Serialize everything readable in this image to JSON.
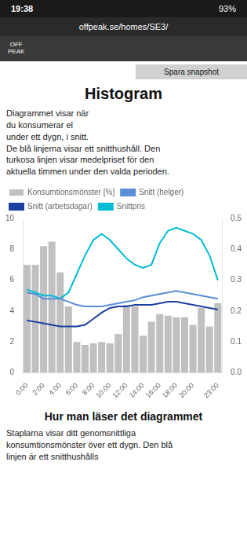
{
  "chart_data": {
    "type": "bar",
    "title": "Histogram",
    "subtitle": "Diagrammet visar när\ndu konsumerar el\nunder ett dygn, i snitt.\nDe blå linjerna visar ett snitthushåll. Den\nturkosa linjen visar medelpriset för den\naktuella timmen under den valda perioden.",
    "annotations": [
      "19:38",
      "93%",
      "offpeak.se/homes/SE3/",
      "OFF\nPEAK",
      "Spara snapshot",
      "Hur man läser det diagrammet",
      "Staplarna visar ditt genomsnittliga\nkonsumtionsmönster över ett dygn. Den blå\nlinjen är ett snitthushålls"
    ],
    "categories": [
      "0:00",
      null,
      "2:00",
      null,
      "4:00",
      null,
      "6:00",
      null,
      "8:00",
      null,
      "10:00",
      null,
      "12:00",
      null,
      "14:00",
      null,
      "16:00",
      null,
      "18:00",
      null,
      "20:00",
      null,
      null,
      "23:00"
    ],
    "series": [
      {
        "name": "Konsumtionsmönster [%]",
        "type": "bar",
        "color": "#c0c0c0",
        "values": [
          7.0,
          7.0,
          8.2,
          8.5,
          6.5,
          4.3,
          2.0,
          1.8,
          1.9,
          2.0,
          1.9,
          2.5,
          4.4,
          4.3,
          2.4,
          3.3,
          3.8,
          3.7,
          3.6,
          3.6,
          3.1,
          4.2,
          3.0,
          4.5
        ]
      },
      {
        "name": "Snitt (helger)",
        "type": "line",
        "color": "#5b8dd9",
        "values": [
          5.2,
          5.1,
          4.8,
          4.8,
          4.8,
          4.6,
          4.4,
          4.3,
          4.3,
          4.3,
          4.4,
          4.5,
          4.6,
          4.7,
          4.9,
          5.0,
          5.1,
          5.2,
          5.3,
          5.2,
          5.1,
          5.0,
          4.9,
          4.8
        ]
      },
      {
        "name": "Snitt (arbetsdagar)",
        "type": "line",
        "color": "#1a3fa0",
        "values": [
          3.4,
          3.3,
          3.2,
          3.1,
          3.0,
          3.0,
          3.0,
          3.1,
          3.5,
          3.9,
          4.2,
          4.3,
          4.3,
          4.4,
          4.4,
          4.4,
          4.5,
          4.6,
          4.6,
          4.5,
          4.4,
          4.3,
          4.2,
          4.1
        ]
      },
      {
        "name": "Snittpris",
        "type": "line",
        "color": "#00bcd4",
        "axis": "y2",
        "values": [
          0.27,
          0.26,
          0.25,
          0.25,
          0.24,
          0.26,
          0.32,
          0.38,
          0.43,
          0.45,
          0.43,
          0.4,
          0.37,
          0.35,
          0.34,
          0.35,
          0.42,
          0.46,
          0.47,
          0.46,
          0.45,
          0.43,
          0.38,
          0.3
        ]
      }
    ],
    "ylim": [
      0,
      10
    ],
    "yticks": [
      0,
      2,
      4,
      6,
      8,
      10
    ],
    "y2lim": [
      0,
      0.5
    ],
    "y2ticks": [
      {
        "value": 0,
        "label": "0.0"
      },
      0.1,
      0.2,
      0.3,
      0.4,
      0.5
    ],
    "grid": false,
    "legend": "top"
  }
}
